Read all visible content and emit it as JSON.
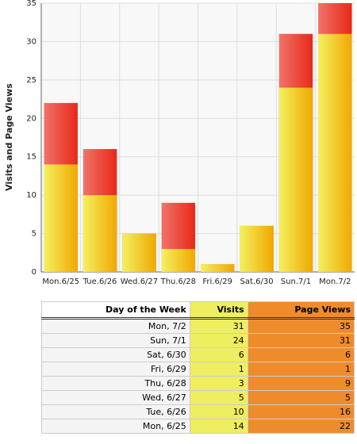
{
  "chart_data": {
    "type": "bar",
    "overlap": true,
    "ylabel": "Visits and Page Views",
    "categories": [
      "Mon.6/25",
      "Tue.6/26",
      "Wed.6/27",
      "Thu.6/28",
      "Fri.6/29",
      "Sat.6/30",
      "Sun.7/1",
      "Mon.7/2"
    ],
    "series": [
      {
        "name": "Page Views",
        "color": "#e82818",
        "values": [
          22,
          16,
          5,
          9,
          1,
          6,
          31,
          35
        ]
      },
      {
        "name": "Visits",
        "color": "#f0a800",
        "values": [
          14,
          10,
          5,
          3,
          1,
          6,
          24,
          31
        ]
      }
    ],
    "ylim": [
      0,
      35
    ],
    "yticks": [
      0,
      5,
      10,
      15,
      20,
      25,
      30,
      35
    ],
    "grid": true
  },
  "table": {
    "headers": [
      "Day of the Week",
      "Visits",
      "Page Views"
    ],
    "rows": [
      [
        "Mon, 7/2",
        31,
        35
      ],
      [
        "Sun, 7/1",
        24,
        31
      ],
      [
        "Sat, 6/30",
        6,
        6
      ],
      [
        "Fri, 6/29",
        1,
        1
      ],
      [
        "Thu, 6/28",
        3,
        9
      ],
      [
        "Wed, 6/27",
        5,
        5
      ],
      [
        "Tue, 6/26",
        10,
        16
      ],
      [
        "Mon, 6/25",
        14,
        22
      ]
    ]
  }
}
